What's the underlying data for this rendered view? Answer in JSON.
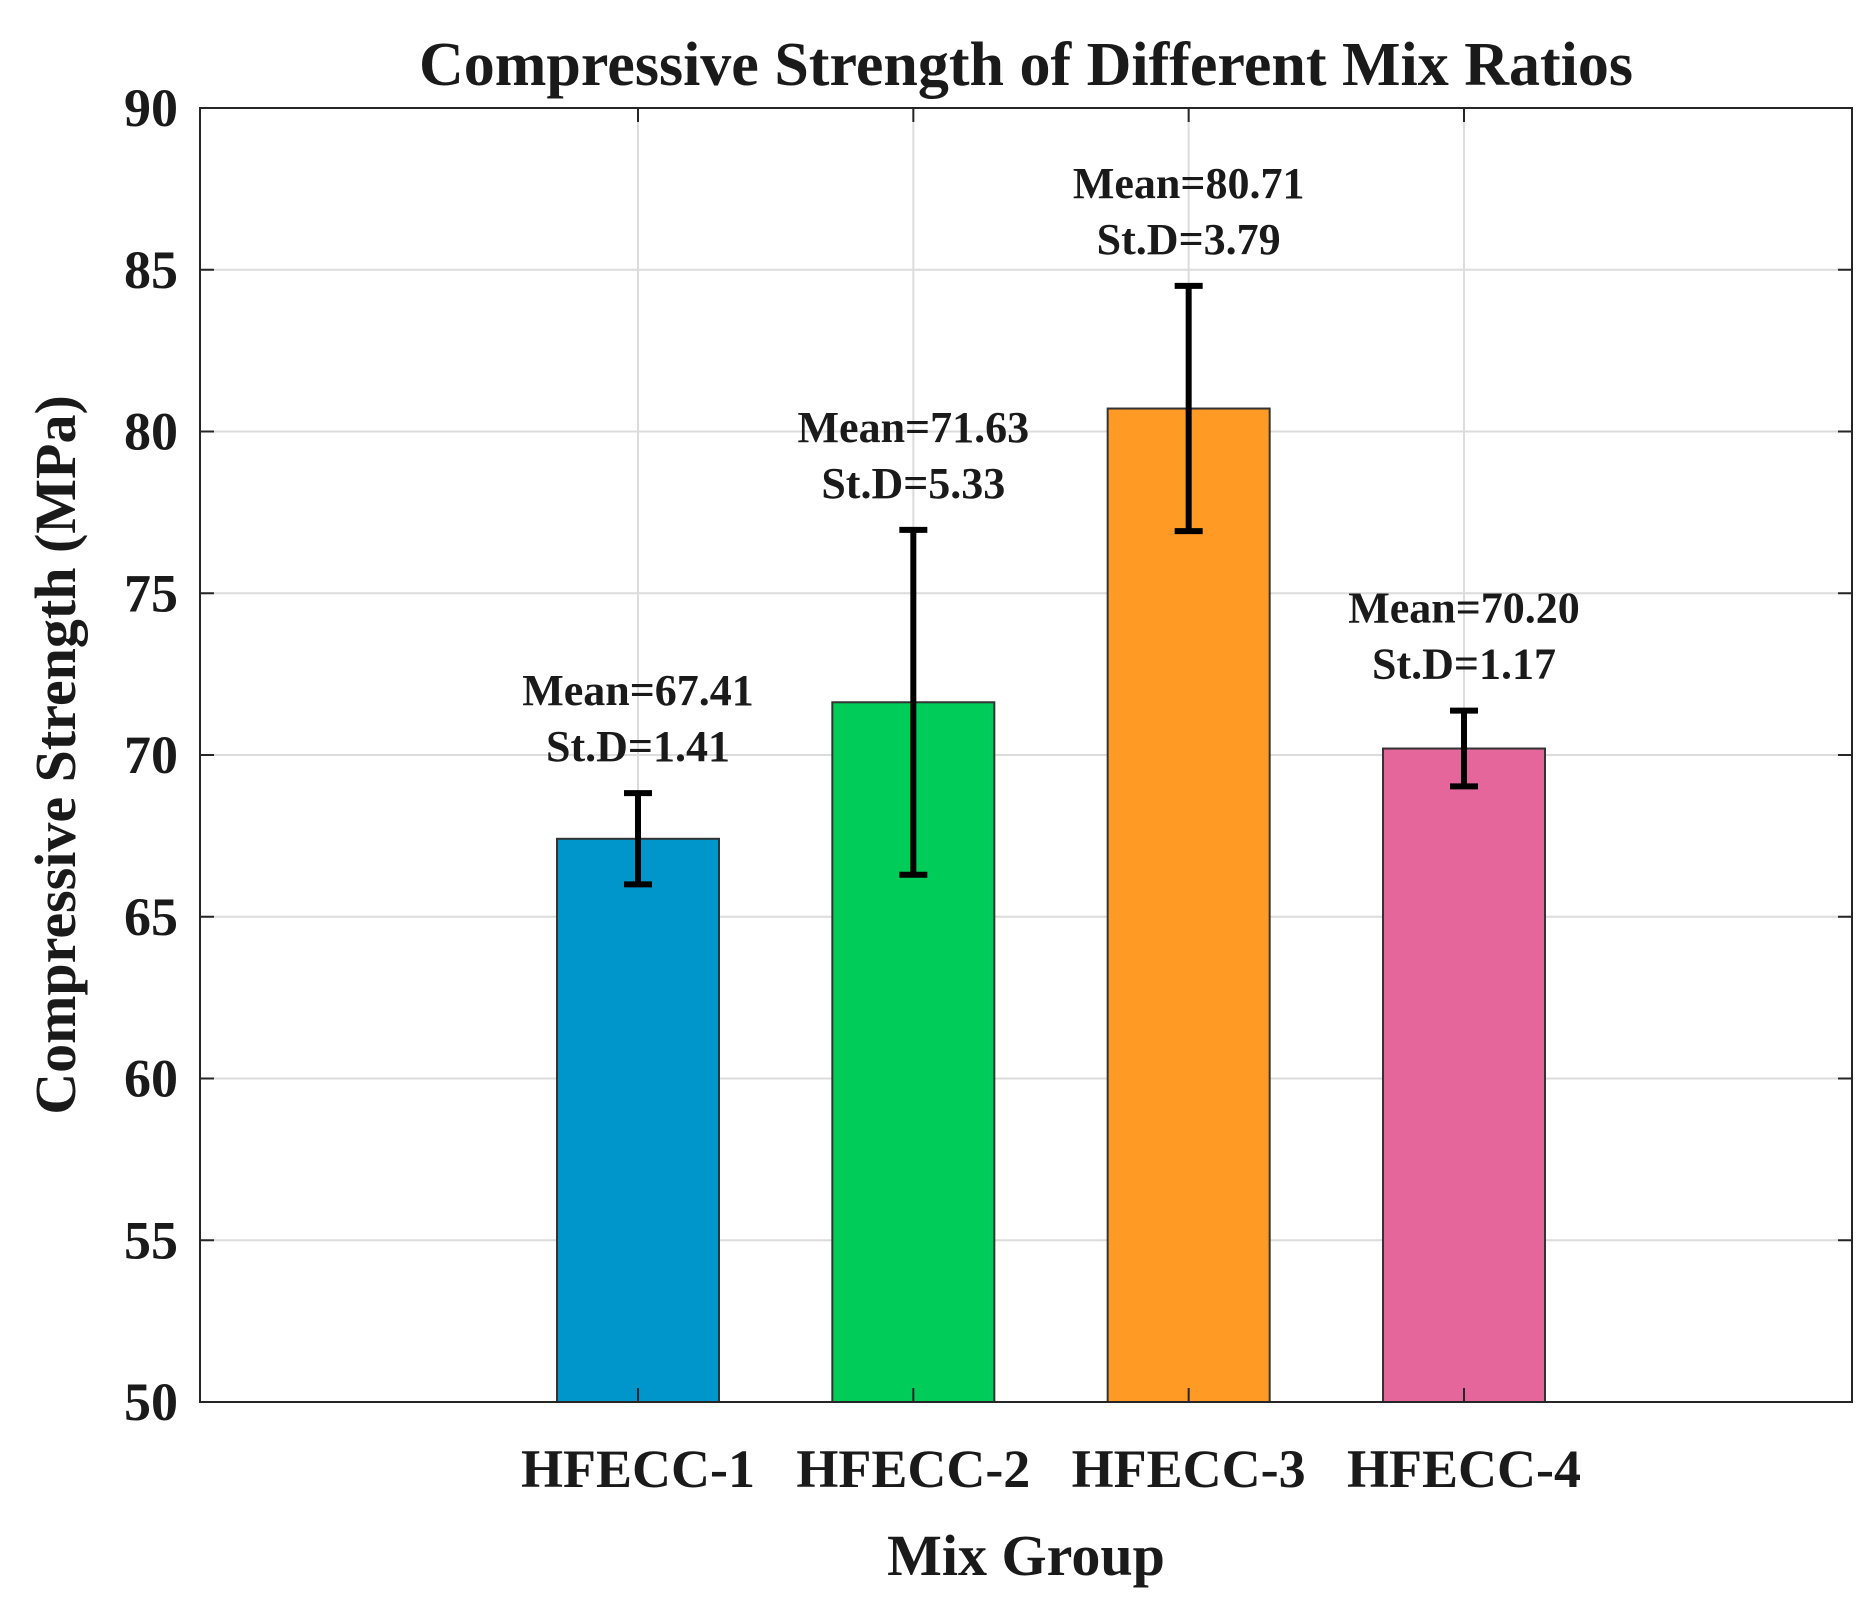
{
  "chart_data": {
    "type": "bar",
    "title": "Compressive Strength of Different Mix Ratios",
    "xlabel": "Mix Group",
    "ylabel": "Compressive Strength (MPa)",
    "ylim": [
      50,
      90
    ],
    "yticks": [
      50,
      55,
      60,
      65,
      70,
      75,
      80,
      85,
      90
    ],
    "grid": true,
    "categories": [
      "HFECC-1",
      "HFECC-2",
      "HFECC-3",
      "HFECC-4"
    ],
    "values": [
      67.41,
      71.63,
      80.71,
      70.2
    ],
    "std": [
      1.41,
      5.33,
      3.79,
      1.17
    ],
    "colors": [
      "#0096cc",
      "#00cc5a",
      "#ff9a24",
      "#e5669a"
    ],
    "annotations": [
      {
        "mean": "Mean=67.41",
        "std": "St.D=1.41"
      },
      {
        "mean": "Mean=71.63",
        "std": "St.D=5.33"
      },
      {
        "mean": "Mean=80.71",
        "std": "St.D=3.79"
      },
      {
        "mean": "Mean=70.20",
        "std": "St.D=1.17"
      }
    ]
  }
}
